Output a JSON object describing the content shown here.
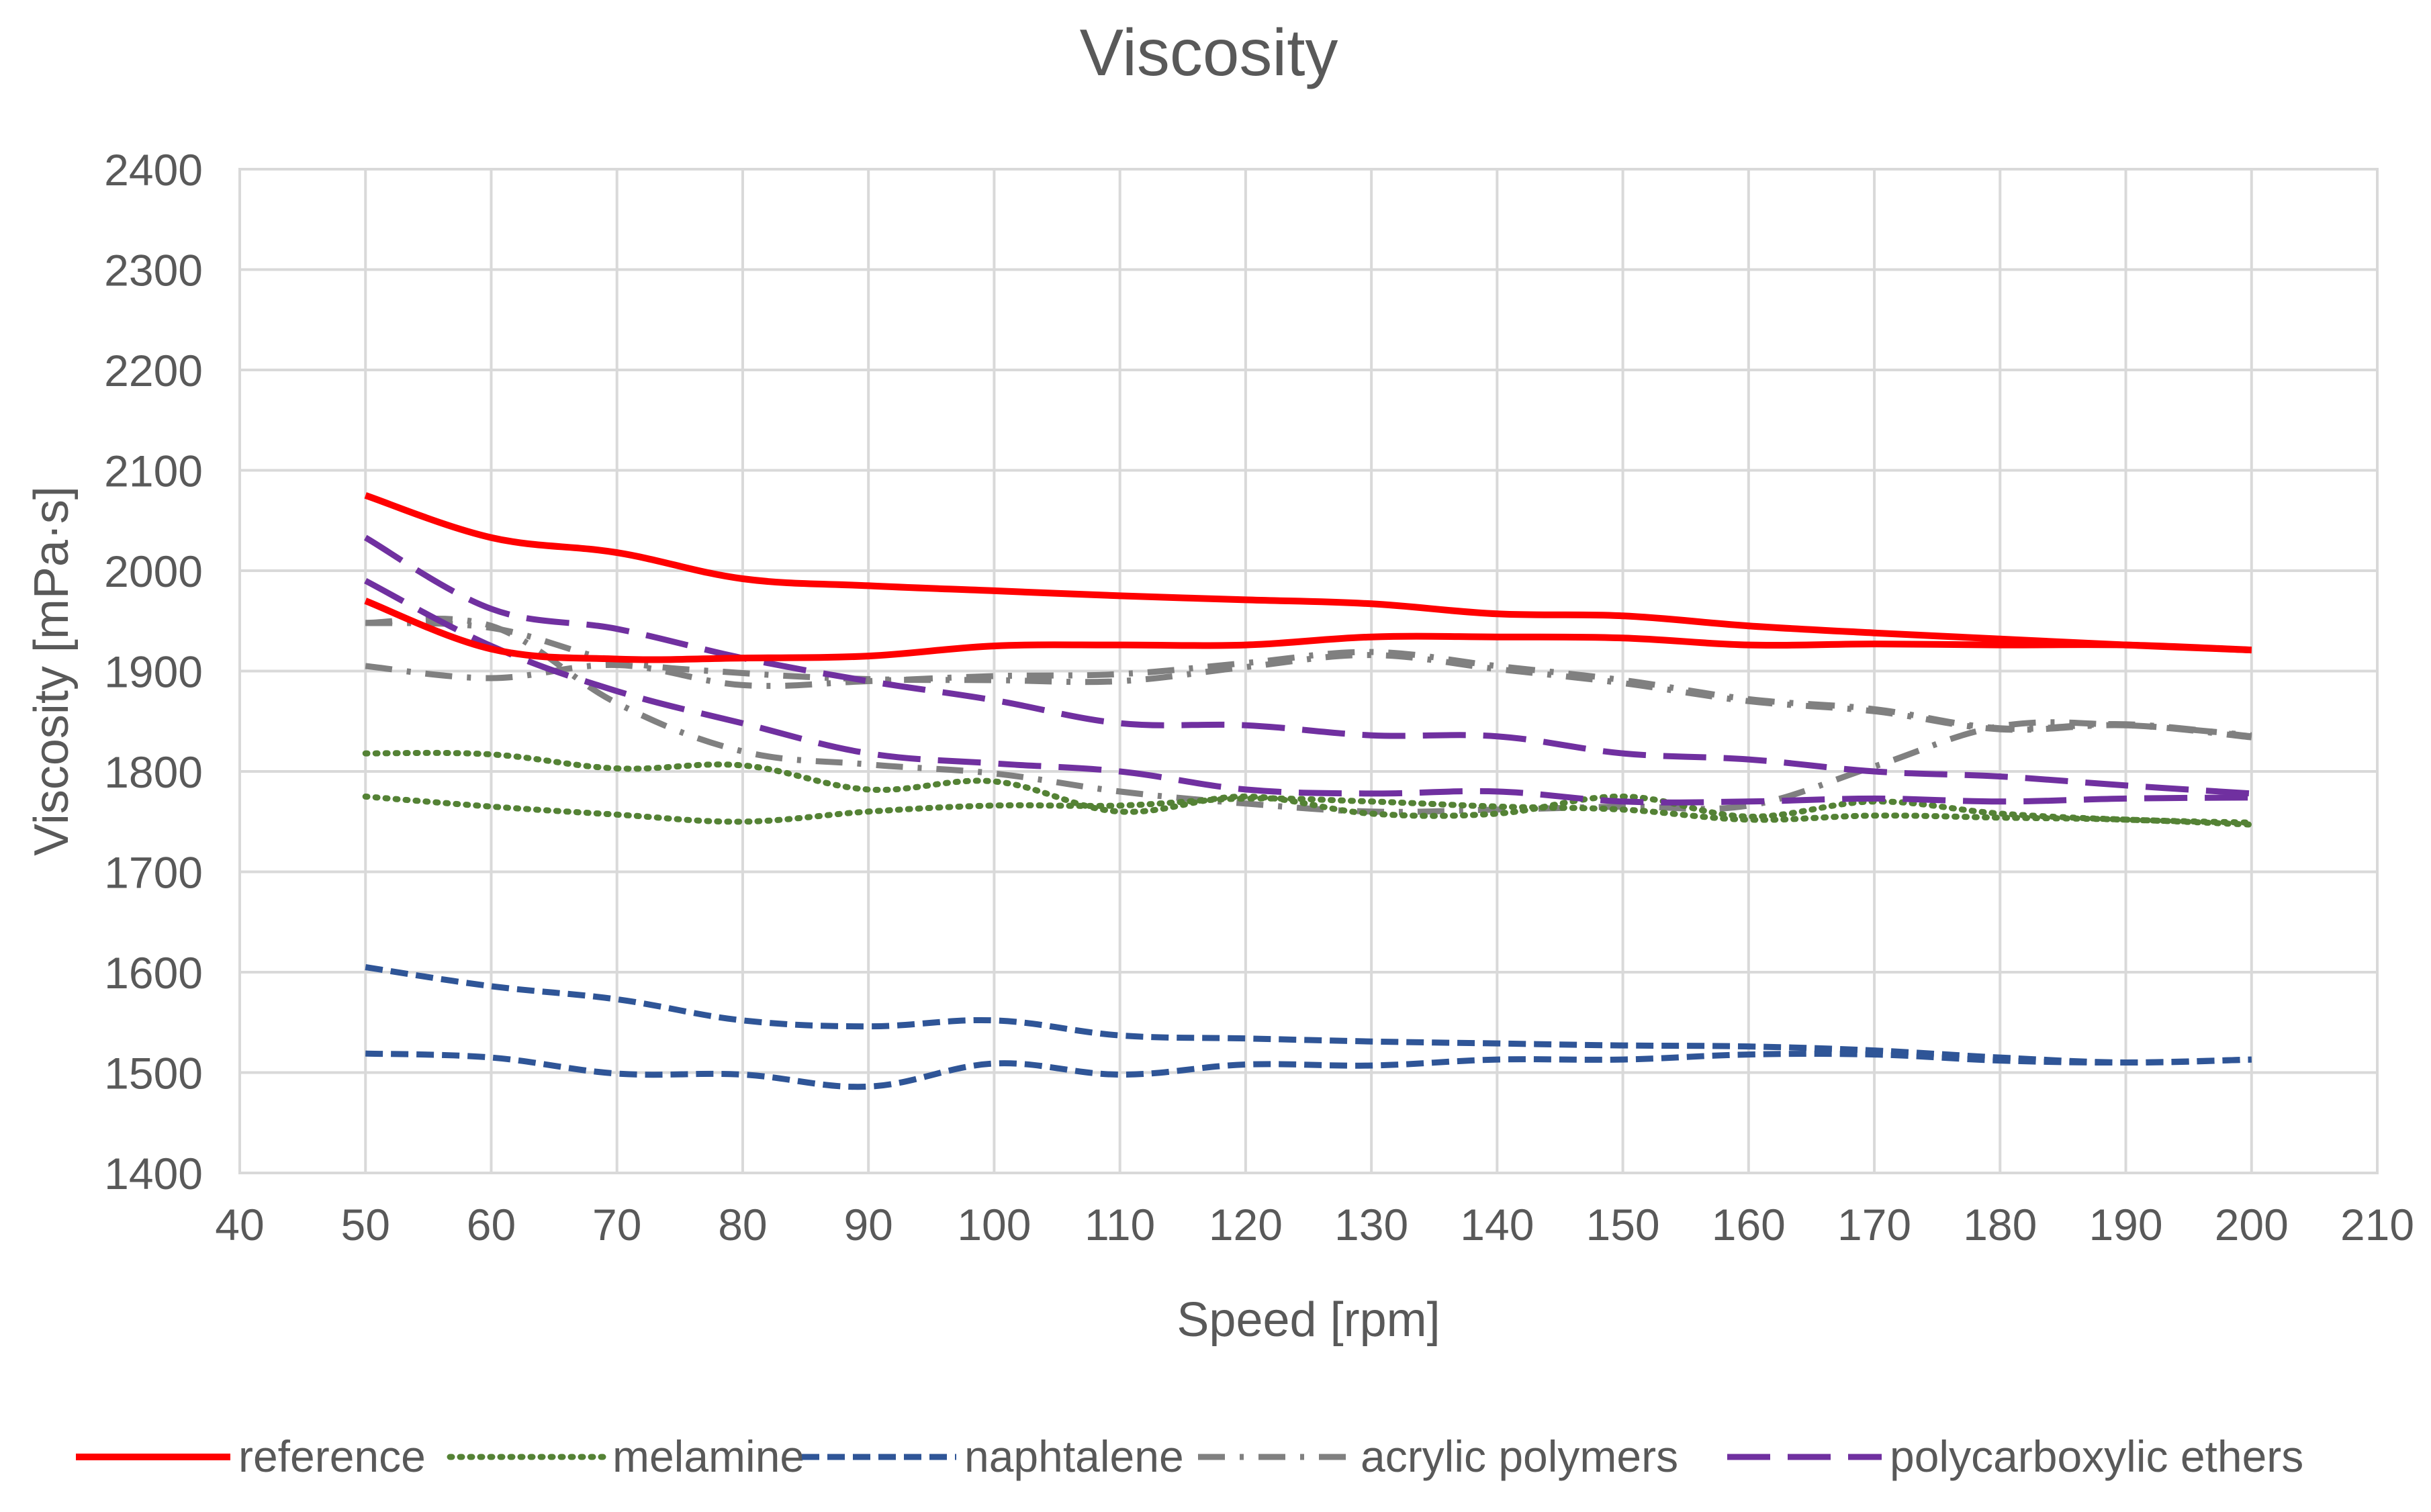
{
  "chart_data": {
    "type": "line",
    "title": "Viscosity",
    "xlabel": "Speed [rpm]",
    "ylabel": "Viscosity [mPa·s]",
    "xlim": [
      40,
      210
    ],
    "ylim": [
      1400,
      2400
    ],
    "xticks": [
      40,
      50,
      60,
      70,
      80,
      90,
      100,
      110,
      120,
      130,
      140,
      150,
      160,
      170,
      180,
      190,
      200,
      210
    ],
    "yticks": [
      1400,
      1500,
      1600,
      1700,
      1800,
      1900,
      2000,
      2100,
      2200,
      2300,
      2400
    ],
    "grid": true,
    "legend_position": "bottom",
    "x": [
      50,
      60,
      70,
      80,
      90,
      100,
      110,
      120,
      130,
      140,
      150,
      160,
      170,
      180,
      190,
      200
    ],
    "series": [
      {
        "name": "reference",
        "legend": true,
        "color": "#ff0000",
        "dash": "solid",
        "values": [
          2075,
          2033,
          2018,
          1992,
          1985,
          1980,
          1975,
          1971,
          1967,
          1957,
          1955,
          1945,
          1938,
          1932,
          1926,
          1921
        ]
      },
      {
        "name": "reference",
        "legend": false,
        "color": "#ff0000",
        "dash": "solid",
        "values": [
          1970,
          1922,
          1912,
          1913,
          1915,
          1925,
          1926,
          1926,
          1934,
          1934,
          1933,
          1926,
          1927,
          1926,
          1926,
          1921
        ]
      },
      {
        "name": "melamine",
        "legend": true,
        "color": "#548235",
        "dash": "dotted",
        "values": [
          1818,
          1817,
          1803,
          1806,
          1782,
          1790,
          1760,
          1775,
          1758,
          1758,
          1775,
          1755,
          1770,
          1758,
          1752,
          1749
        ]
      },
      {
        "name": "melamine",
        "legend": false,
        "color": "#548235",
        "dash": "dotted",
        "values": [
          1775,
          1765,
          1757,
          1750,
          1760,
          1766,
          1766,
          1773,
          1770,
          1765,
          1762,
          1752,
          1756,
          1754,
          1752,
          1747
        ]
      },
      {
        "name": "naphtalene",
        "legend": true,
        "color": "#2f5597",
        "dash": "short-dash",
        "values": [
          1605,
          1586,
          1573,
          1552,
          1546,
          1552,
          1537,
          1534,
          1531,
          1529,
          1527,
          1526,
          1522,
          1515,
          1510,
          1513
        ]
      },
      {
        "name": "naphtalene",
        "legend": false,
        "color": "#2f5597",
        "dash": "short-dash",
        "values": [
          1519,
          1515,
          1499,
          1498,
          1486,
          1509,
          1498,
          1508,
          1507,
          1513,
          1513,
          1518,
          1518,
          1512,
          1510,
          1513
        ]
      },
      {
        "name": "acrylic polymers",
        "legend": true,
        "color": "#808080",
        "dash": "dash-dot",
        "values": [
          1905,
          1893,
          1906,
          1886,
          1890,
          1895,
          1897,
          1908,
          1919,
          1905,
          1891,
          1872,
          1862,
          1843,
          1847,
          1835
        ]
      },
      {
        "name": "acrylic polymers",
        "legend": false,
        "color": "#808080",
        "dash": "dash-dot",
        "values": [
          1948,
          1943,
          1910,
          1898,
          1892,
          1891,
          1890,
          1904,
          1916,
          1902,
          1888,
          1870,
          1860,
          1842,
          1846,
          1834
        ]
      },
      {
        "name": "acrylic polymers",
        "legend": false,
        "color": "#808080",
        "dash": "dash-dot",
        "values": [
          1948,
          1945,
          1868,
          1820,
          1807,
          1798,
          1780,
          1768,
          1760,
          1762,
          1765,
          1766,
          1805,
          1845,
          1846,
          1836
        ]
      },
      {
        "name": "polycarboxylic ethers",
        "legend": true,
        "color": "#7030a0",
        "dash": "long-dash",
        "values": [
          2033,
          1962,
          1942,
          1913,
          1890,
          1871,
          1848,
          1846,
          1836,
          1835,
          1818,
          1812,
          1800,
          1795,
          1786,
          1778
        ]
      },
      {
        "name": "polycarboxylic ethers",
        "legend": false,
        "color": "#7030a0",
        "dash": "long-dash",
        "values": [
          1990,
          1925,
          1880,
          1848,
          1818,
          1808,
          1800,
          1782,
          1778,
          1780,
          1770,
          1770,
          1773,
          1770,
          1773,
          1774
        ]
      }
    ]
  }
}
